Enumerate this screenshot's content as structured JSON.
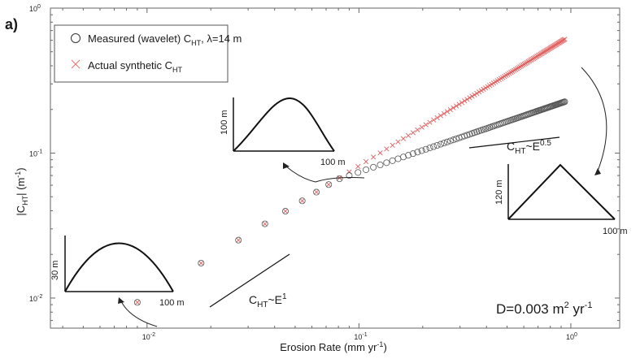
{
  "chart_data": {
    "type": "scatter",
    "panel_label": "a)",
    "xlabel": "Erosion Rate (mm yr",
    "xlabel_sup": "-1",
    "xlabel_end": ")",
    "ylabel_main": "|C",
    "ylabel_sub": "HT",
    "ylabel_mid": "| (m",
    "ylabel_sup": "-1",
    "ylabel_end": ")",
    "xscale": "log",
    "yscale": "log",
    "xlim": [
      0.0035,
      1.7
    ],
    "ylim": [
      0.0062,
      1.0
    ],
    "x_ticks": [
      {
        "value": 0.01,
        "base": "10",
        "exp": "-2"
      },
      {
        "value": 0.1,
        "base": "10",
        "exp": "-1"
      },
      {
        "value": 1.0,
        "base": "10",
        "exp": "0"
      }
    ],
    "y_ticks": [
      {
        "value": 0.01,
        "base": "10",
        "exp": "-2"
      },
      {
        "value": 0.1,
        "base": "10",
        "exp": "-1"
      },
      {
        "value": 1.0,
        "base": "10",
        "exp": "0"
      }
    ],
    "legend": {
      "placement": "top-left",
      "entries": [
        {
          "text": "Measured (wavelet) C",
          "sub": "HT",
          "after": ", λ=14 m",
          "marker": "circle",
          "color": "#444444"
        },
        {
          "text": "Actual synthetic C",
          "sub": "HT",
          "after": "",
          "marker": "x",
          "color": "#e07070"
        }
      ]
    },
    "series": [
      {
        "name": "Measured (wavelet) CHT, λ=14 m",
        "marker": "circle",
        "color": "#555555",
        "x": [
          0.009,
          0.018,
          0.027,
          0.036,
          0.045,
          0.054,
          0.063,
          0.072,
          0.081,
          0.09,
          0.099,
          0.108,
          0.117,
          0.126,
          0.135,
          0.144,
          0.153,
          0.162,
          0.171,
          0.18,
          0.189,
          0.198,
          0.207,
          0.216,
          0.225,
          0.234,
          0.243,
          0.252,
          0.261,
          0.27,
          0.279,
          0.288,
          0.297,
          0.306,
          0.315,
          0.324,
          0.333,
          0.342,
          0.351,
          0.36,
          0.369,
          0.378,
          0.387,
          0.396,
          0.405,
          0.414,
          0.423,
          0.432,
          0.441,
          0.45,
          0.459,
          0.468,
          0.477,
          0.486,
          0.495,
          0.504,
          0.513,
          0.522,
          0.531,
          0.54,
          0.549,
          0.558,
          0.567,
          0.576,
          0.585,
          0.594,
          0.603,
          0.612,
          0.621,
          0.63,
          0.639,
          0.648,
          0.657,
          0.666,
          0.675,
          0.684,
          0.693,
          0.702,
          0.711,
          0.72,
          0.729,
          0.738,
          0.747,
          0.756,
          0.765,
          0.774,
          0.783,
          0.792,
          0.801,
          0.81,
          0.819,
          0.828,
          0.837,
          0.846,
          0.855,
          0.864,
          0.873,
          0.882,
          0.891,
          0.9,
          0.909,
          0.918,
          0.927,
          0.936
        ]
      },
      {
        "name": "Actual synthetic CHT",
        "marker": "x",
        "color": "#e06060",
        "x": [
          0.009,
          0.018,
          0.027,
          0.036,
          0.045,
          0.054,
          0.063,
          0.072,
          0.081,
          0.09,
          0.099,
          0.108,
          0.117,
          0.126,
          0.135,
          0.144,
          0.153,
          0.162,
          0.171,
          0.18,
          0.189,
          0.198,
          0.207,
          0.216,
          0.225,
          0.234,
          0.243,
          0.252,
          0.261,
          0.27,
          0.279,
          0.288,
          0.297,
          0.306,
          0.315,
          0.324,
          0.333,
          0.342,
          0.351,
          0.36,
          0.369,
          0.378,
          0.387,
          0.396,
          0.405,
          0.414,
          0.423,
          0.432,
          0.441,
          0.45,
          0.459,
          0.468,
          0.477,
          0.486,
          0.495,
          0.504,
          0.513,
          0.522,
          0.531,
          0.54,
          0.549,
          0.558,
          0.567,
          0.576,
          0.585,
          0.594,
          0.603,
          0.612,
          0.621,
          0.63,
          0.639,
          0.648,
          0.657,
          0.666,
          0.675,
          0.684,
          0.693,
          0.702,
          0.711,
          0.72,
          0.729,
          0.738,
          0.747,
          0.756,
          0.765,
          0.774,
          0.783,
          0.792,
          0.801,
          0.81,
          0.819,
          0.828,
          0.837,
          0.846,
          0.855,
          0.864,
          0.873,
          0.882,
          0.891,
          0.9,
          0.909,
          0.918,
          0.927,
          0.936
        ]
      }
    ],
    "annotations": {
      "diffusivity": {
        "text": "D=0.003 m",
        "sup": "2",
        "after": " yr",
        "sup2": "-1"
      },
      "slope1": {
        "text": "C",
        "sub": "HT",
        "mid": "~E",
        "sup": "1"
      },
      "slope05": {
        "text": "C",
        "sub": "HT",
        "mid": "~E",
        "sup": "0.5"
      },
      "inset_small": {
        "height_label": "30 m",
        "width_label": "100 m"
      },
      "inset_mid": {
        "height_label": "100 m",
        "width_label": "100 m"
      },
      "inset_large": {
        "height_label": "120 m",
        "width_label": "100 m"
      }
    }
  }
}
